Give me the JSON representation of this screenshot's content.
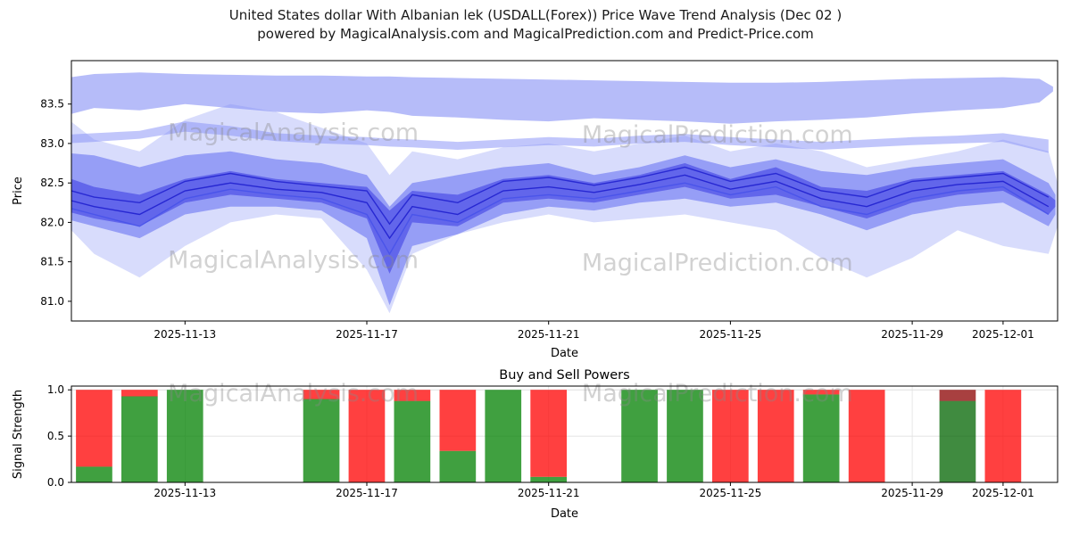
{
  "title": {
    "line1": "United States dollar With Albanian lek (USDALL(Forex)) Price Wave Trend Analysis (Dec 02 )",
    "line2": "powered by MagicalAnalysis.com and MagicalPrediction.com and Predict-Price.com"
  },
  "chart_data": [
    {
      "type": "area",
      "title": "",
      "xlabel": "Date",
      "ylabel": "Price",
      "x_base_date": "2025-11-10",
      "xlim": [
        0.5,
        22.2
      ],
      "ylim": [
        80.75,
        84.05
      ],
      "grid": false,
      "y_ticks": [
        {
          "v": 81.0,
          "label": "81.0"
        },
        {
          "v": 81.5,
          "label": "81.5"
        },
        {
          "v": 82.0,
          "label": "82.0"
        },
        {
          "v": 82.5,
          "label": "82.5"
        },
        {
          "v": 83.0,
          "label": "83.0"
        },
        {
          "v": 83.5,
          "label": "83.5"
        }
      ],
      "x_ticks": [
        {
          "day": 3,
          "label": "2025-11-13"
        },
        {
          "day": 7,
          "label": "2025-11-17"
        },
        {
          "day": 11,
          "label": "2025-11-21"
        },
        {
          "day": 15,
          "label": "2025-11-25"
        },
        {
          "day": 19,
          "label": "2025-11-29"
        },
        {
          "day": 21,
          "label": "2025-12-01"
        }
      ],
      "watermarks": [
        {
          "text": "MagicalAnalysis.com",
          "fx": 0.225,
          "fy": 0.28
        },
        {
          "text": "MagicalPrediction.com",
          "fx": 0.655,
          "fy": 0.29
        },
        {
          "text": "MagicalAnalysis.com",
          "fx": 0.225,
          "fy": 0.77
        },
        {
          "text": "MagicalPrediction.com",
          "fx": 0.655,
          "fy": 0.78
        }
      ],
      "bands": [
        {
          "name": "upper-forecast-band",
          "color": "#a9b0f8",
          "opacity": 0.85,
          "x": [
            0,
            1,
            2,
            3,
            4,
            5,
            6,
            7,
            7.5,
            8,
            9,
            10,
            11,
            12,
            13,
            14,
            15,
            16,
            17,
            18,
            19,
            20,
            21,
            21.8,
            22.1
          ],
          "upper": [
            83.8,
            83.88,
            83.9,
            83.88,
            83.87,
            83.86,
            83.86,
            83.85,
            83.85,
            83.84,
            83.83,
            83.82,
            83.81,
            83.8,
            83.79,
            83.78,
            83.77,
            83.77,
            83.78,
            83.8,
            83.82,
            83.83,
            83.84,
            83.82,
            83.72
          ],
          "lower": [
            83.3,
            83.45,
            83.42,
            83.5,
            83.45,
            83.4,
            83.38,
            83.42,
            83.4,
            83.35,
            83.33,
            83.3,
            83.28,
            83.32,
            83.3,
            83.28,
            83.25,
            83.28,
            83.3,
            83.33,
            83.38,
            83.42,
            83.45,
            83.52,
            83.66
          ]
        },
        {
          "name": "resistance-stripe",
          "color": "#b6bcfa",
          "opacity": 0.85,
          "x": [
            0,
            1,
            2,
            3,
            4,
            5,
            6,
            7,
            7.5,
            8,
            9,
            10,
            11,
            12,
            13,
            14,
            15,
            16,
            17,
            18,
            19,
            20,
            21,
            22
          ],
          "upper": [
            83.1,
            83.13,
            83.16,
            83.28,
            83.22,
            83.13,
            83.1,
            83.08,
            83.06,
            83.05,
            83.02,
            83.05,
            83.08,
            83.06,
            83.1,
            83.12,
            83.08,
            83.05,
            83.02,
            83.05,
            83.08,
            83.1,
            83.13,
            83.05
          ],
          "lower": [
            82.99,
            83.02,
            83.06,
            83.15,
            83.1,
            83.03,
            83.0,
            82.98,
            82.96,
            82.95,
            82.92,
            82.95,
            82.98,
            82.96,
            83.0,
            83.02,
            82.98,
            82.95,
            82.92,
            82.95,
            82.98,
            83.0,
            83.02,
            82.88
          ]
        },
        {
          "name": "wide-wave-envelope",
          "color": "#8691f5",
          "opacity": 0.32,
          "x": [
            0,
            1,
            2,
            3,
            4,
            5,
            6,
            7,
            7.5,
            8,
            9,
            10,
            11,
            12,
            13,
            14,
            15,
            16,
            17,
            18,
            19,
            20,
            21,
            22,
            22.2
          ],
          "upper": [
            83.5,
            83.05,
            82.9,
            83.3,
            83.5,
            83.4,
            83.2,
            83.0,
            82.6,
            82.9,
            82.8,
            82.95,
            83.0,
            82.9,
            83.0,
            83.1,
            82.9,
            83.0,
            82.9,
            82.7,
            82.8,
            82.9,
            83.05,
            82.9,
            82.5
          ],
          "lower": [
            82.2,
            81.6,
            81.3,
            81.7,
            82.0,
            82.1,
            82.05,
            81.4,
            80.85,
            81.6,
            81.85,
            82.0,
            82.1,
            82.0,
            82.05,
            82.1,
            82.0,
            81.9,
            81.55,
            81.3,
            81.55,
            81.9,
            81.7,
            81.6,
            81.95
          ]
        },
        {
          "name": "mid-wave-band",
          "color": "#4853ef",
          "opacity": 0.45,
          "x": [
            0,
            1,
            2,
            3,
            4,
            5,
            6,
            7,
            7.5,
            8,
            9,
            10,
            11,
            12,
            13,
            14,
            15,
            16,
            17,
            18,
            19,
            20,
            21,
            22,
            22.15
          ],
          "upper": [
            82.9,
            82.85,
            82.7,
            82.85,
            82.9,
            82.8,
            82.75,
            82.6,
            82.2,
            82.5,
            82.6,
            82.7,
            82.75,
            82.6,
            82.7,
            82.85,
            82.7,
            82.8,
            82.65,
            82.6,
            82.7,
            82.75,
            82.8,
            82.5,
            82.35
          ],
          "lower": [
            82.1,
            81.95,
            81.8,
            82.1,
            82.2,
            82.2,
            82.15,
            81.8,
            80.95,
            81.7,
            81.85,
            82.1,
            82.2,
            82.15,
            82.25,
            82.3,
            82.2,
            82.25,
            82.1,
            81.9,
            82.1,
            82.2,
            82.25,
            81.95,
            82.1
          ]
        },
        {
          "name": "core-wave-band",
          "color": "#2e2ee0",
          "opacity": 0.5,
          "x": [
            0,
            1,
            2,
            3,
            4,
            5,
            6,
            7,
            7.5,
            8,
            9,
            10,
            11,
            12,
            13,
            14,
            15,
            16,
            17,
            18,
            19,
            20,
            21,
            22,
            22.15
          ],
          "upper": [
            82.65,
            82.45,
            82.35,
            82.55,
            82.65,
            82.55,
            82.5,
            82.45,
            82.15,
            82.4,
            82.35,
            82.55,
            82.6,
            82.5,
            82.6,
            82.75,
            82.55,
            82.7,
            82.45,
            82.4,
            82.55,
            82.6,
            82.65,
            82.35,
            82.28
          ],
          "lower": [
            82.2,
            82.05,
            81.95,
            82.25,
            82.35,
            82.3,
            82.25,
            82.05,
            81.35,
            82.0,
            81.95,
            82.25,
            82.3,
            82.25,
            82.35,
            82.45,
            82.3,
            82.35,
            82.2,
            82.05,
            82.25,
            82.35,
            82.4,
            82.1,
            82.2
          ]
        }
      ],
      "lines": [
        {
          "name": "trend-line-upper",
          "color": "#2020cf",
          "opacity": 0.85,
          "x": [
            0,
            1,
            2,
            3,
            4,
            5,
            6,
            7,
            7.5,
            8,
            9,
            10,
            11,
            12,
            13,
            14,
            15,
            16,
            17,
            18,
            19,
            20,
            21,
            22
          ],
          "y": [
            82.48,
            82.32,
            82.25,
            82.52,
            82.62,
            82.52,
            82.46,
            82.4,
            81.98,
            82.35,
            82.25,
            82.52,
            82.57,
            82.47,
            82.57,
            82.7,
            82.52,
            82.62,
            82.4,
            82.32,
            82.52,
            82.57,
            82.62,
            82.32
          ]
        },
        {
          "name": "trend-line-mid",
          "color": "#2020cf",
          "opacity": 0.9,
          "x": [
            0,
            1,
            2,
            3,
            4,
            5,
            6,
            7,
            7.5,
            8,
            9,
            10,
            11,
            12,
            13,
            14,
            15,
            16,
            17,
            18,
            19,
            20,
            21,
            22
          ],
          "y": [
            82.35,
            82.2,
            82.1,
            82.4,
            82.5,
            82.42,
            82.38,
            82.25,
            81.8,
            82.2,
            82.1,
            82.4,
            82.45,
            82.38,
            82.48,
            82.6,
            82.42,
            82.52,
            82.3,
            82.2,
            82.4,
            82.48,
            82.52,
            82.2
          ]
        },
        {
          "name": "trend-line-lower",
          "color": "#4550ea",
          "opacity": 0.8,
          "x": [
            0,
            1,
            2,
            3,
            4,
            5,
            6,
            7,
            7.5,
            8,
            9,
            10,
            11,
            12,
            13,
            14,
            15,
            16,
            17,
            18,
            19,
            20,
            21,
            22
          ],
          "y": [
            82.25,
            82.1,
            81.95,
            82.3,
            82.42,
            82.35,
            82.3,
            82.1,
            81.6,
            82.1,
            82.0,
            82.3,
            82.35,
            82.3,
            82.4,
            82.5,
            82.35,
            82.45,
            82.2,
            82.1,
            82.3,
            82.4,
            82.45,
            82.1
          ]
        }
      ]
    },
    {
      "type": "bar",
      "title": "Buy and Sell Powers",
      "xlabel": "Date",
      "ylabel": "Signal Strength",
      "x_base_date": "2025-11-10",
      "xlim": [
        0.5,
        22.2
      ],
      "ylim": [
        0,
        1.04
      ],
      "grid": true,
      "grid_y": [
        0.5,
        1.0
      ],
      "bar_width": 0.8,
      "colors": {
        "buy": "#008000",
        "sell": "#ff0000",
        "buy_dark": "#006400",
        "sell_dark": "#8b0000",
        "opacity": 0.75
      },
      "y_ticks": [
        {
          "v": 0.0,
          "label": "0.0"
        },
        {
          "v": 0.5,
          "label": "0.5"
        },
        {
          "v": 1.0,
          "label": "1.0"
        }
      ],
      "x_ticks": [
        {
          "day": 3,
          "label": "2025-11-13"
        },
        {
          "day": 7,
          "label": "2025-11-17"
        },
        {
          "day": 11,
          "label": "2025-11-21"
        },
        {
          "day": 15,
          "label": "2025-11-25"
        },
        {
          "day": 19,
          "label": "2025-11-29"
        },
        {
          "day": 21,
          "label": "2025-12-01"
        }
      ],
      "watermarks": [
        {
          "text": "MagicalAnalysis.com",
          "fx": 0.225,
          "fy": 0.09
        },
        {
          "text": "MagicalPrediction.com",
          "fx": 0.655,
          "fy": 0.09
        }
      ],
      "bars": [
        {
          "date": "2025-11-11",
          "day": 1,
          "buy": 0.17,
          "sell": 0.83,
          "dark": false
        },
        {
          "date": "2025-11-12",
          "day": 2,
          "buy": 0.93,
          "sell": 0.07,
          "dark": false
        },
        {
          "date": "2025-11-13",
          "day": 3,
          "buy": 1.0,
          "sell": 0.0,
          "dark": false
        },
        {
          "date": "2025-11-16",
          "day": 6,
          "buy": 0.9,
          "sell": 0.1,
          "dark": false
        },
        {
          "date": "2025-11-17",
          "day": 7,
          "buy": 0.0,
          "sell": 1.0,
          "dark": false
        },
        {
          "date": "2025-11-18",
          "day": 8,
          "buy": 0.88,
          "sell": 0.12,
          "dark": false
        },
        {
          "date": "2025-11-19",
          "day": 9,
          "buy": 0.34,
          "sell": 0.66,
          "dark": false
        },
        {
          "date": "2025-11-20",
          "day": 10,
          "buy": 1.0,
          "sell": 0.0,
          "dark": false
        },
        {
          "date": "2025-11-21",
          "day": 11,
          "buy": 0.06,
          "sell": 0.94,
          "dark": false
        },
        {
          "date": "2025-11-23",
          "day": 13,
          "buy": 1.0,
          "sell": 0.0,
          "dark": false
        },
        {
          "date": "2025-11-24",
          "day": 14,
          "buy": 1.0,
          "sell": 0.0,
          "dark": false
        },
        {
          "date": "2025-11-25",
          "day": 15,
          "buy": 0.0,
          "sell": 1.0,
          "dark": false
        },
        {
          "date": "2025-11-26",
          "day": 16,
          "buy": 0.0,
          "sell": 1.0,
          "dark": false
        },
        {
          "date": "2025-11-27",
          "day": 17,
          "buy": 0.95,
          "sell": 0.05,
          "dark": false
        },
        {
          "date": "2025-11-28",
          "day": 18,
          "buy": 0.0,
          "sell": 1.0,
          "dark": false
        },
        {
          "date": "2025-11-30",
          "day": 20,
          "buy": 0.88,
          "sell": 0.12,
          "dark": true
        },
        {
          "date": "2025-12-01",
          "day": 21,
          "buy": 0.0,
          "sell": 1.0,
          "dark": false
        }
      ]
    }
  ]
}
